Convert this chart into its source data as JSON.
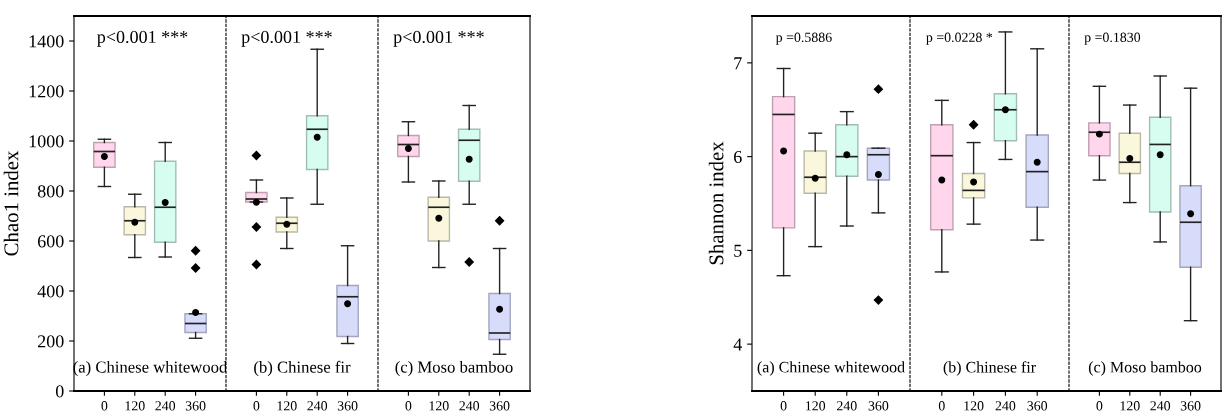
{
  "chart_data": [
    {
      "type": "box",
      "categories": [
        "0",
        "120",
        "240",
        "360"
      ],
      "ylabel": "Chao1 index",
      "ylim": [
        0,
        1500
      ],
      "yticks": [
        0,
        200,
        400,
        600,
        800,
        1000,
        1200,
        1400
      ],
      "colors": [
        "#ffd6ec",
        "#faf7dc",
        "#d6fdf0",
        "#d8dcfb"
      ],
      "annotations": [
        "p<0.001 ***",
        "(a) Chinese whitewood"
      ],
      "boxes": [
        {
          "low": 818,
          "q1": 895,
          "median": 958,
          "q3": 994,
          "high": 1007,
          "mean": 938
        },
        {
          "low": 534,
          "q1": 625,
          "median": 681,
          "q3": 737,
          "high": 787,
          "mean": 675
        },
        {
          "low": 536,
          "q1": 595,
          "median": 735,
          "q3": 919,
          "high": 994,
          "mean": 754
        },
        {
          "low": 211,
          "q1": 234,
          "median": 270,
          "q3": 309,
          "high": 309,
          "mean": 314,
          "outliers": [
            561,
            492
          ]
        }
      ]
    },
    {
      "type": "box",
      "categories": [
        "0",
        "120",
        "240",
        "360"
      ],
      "ylim": [
        0,
        1500
      ],
      "yticks": [
        0,
        200,
        400,
        600,
        800,
        1000,
        1200,
        1400
      ],
      "tick_labels": "x",
      "colors": [
        "#ffd6ec",
        "#faf7dc",
        "#d6fdf0",
        "#d8dcfb"
      ],
      "annotations": [
        "p<0.001 ***",
        "(b) Chinese fir"
      ],
      "boxes": [
        {
          "low": 756,
          "q1": 756,
          "median": 768,
          "q3": 794,
          "high": 844,
          "mean": 755,
          "outliers": [
            942,
            656,
            506
          ]
        },
        {
          "low": 570,
          "q1": 636,
          "median": 671,
          "q3": 695,
          "high": 772,
          "mean": 667
        },
        {
          "low": 747,
          "q1": 886,
          "median": 1047,
          "q3": 1101,
          "high": 1367,
          "mean": 1015
        },
        {
          "low": 190,
          "q1": 218,
          "median": 377,
          "q3": 422,
          "high": 581,
          "mean": 349
        }
      ]
    },
    {
      "type": "box",
      "categories": [
        "0",
        "120",
        "240",
        "360"
      ],
      "ylim": [
        0,
        1500
      ],
      "yticks": [
        0,
        200,
        400,
        600,
        800,
        1000,
        1200,
        1400
      ],
      "tick_labels": "x",
      "colors": [
        "#ffd6ec",
        "#faf7dc",
        "#d6fdf0",
        "#d8dcfb"
      ],
      "annotations": [
        "p<0.001 ***",
        "(c) Moso bamboo"
      ],
      "boxes": [
        {
          "low": 836,
          "q1": 938,
          "median": 986,
          "q3": 1022,
          "high": 1077,
          "mean": 970
        },
        {
          "low": 494,
          "q1": 600,
          "median": 735,
          "q3": 775,
          "high": 840,
          "mean": 691
        },
        {
          "low": 747,
          "q1": 839,
          "median": 1003,
          "q3": 1047,
          "high": 1142,
          "mean": 927,
          "outliers": [
            516
          ]
        },
        {
          "low": 147,
          "q1": 206,
          "median": 232,
          "q3": 390,
          "high": 570,
          "mean": 327,
          "outliers": [
            681
          ]
        }
      ]
    },
    {
      "type": "box",
      "categories": [
        "0",
        "120",
        "240",
        "360"
      ],
      "ylabel": "Shannon index",
      "ylim": [
        3.5,
        7.5
      ],
      "yticks": [
        4,
        5,
        6,
        7
      ],
      "colors": [
        "#ffd6ec",
        "#faf7dc",
        "#d6fdf0",
        "#d8dcfb"
      ],
      "annotations": [
        "p =0.5886",
        "(a) Chinese whitewood"
      ],
      "boxes": [
        {
          "low": 4.73,
          "q1": 5.24,
          "median": 6.45,
          "q3": 6.64,
          "high": 6.94,
          "mean": 6.06
        },
        {
          "low": 5.04,
          "q1": 5.61,
          "median": 5.78,
          "q3": 6.06,
          "high": 6.25,
          "mean": 5.77
        },
        {
          "low": 5.26,
          "q1": 5.79,
          "median": 6.0,
          "q3": 6.34,
          "high": 6.48,
          "mean": 6.02
        },
        {
          "low": 5.4,
          "q1": 5.75,
          "median": 6.02,
          "q3": 6.09,
          "high": 6.09,
          "mean": 5.81,
          "outliers": [
            6.72,
            4.47
          ]
        }
      ]
    },
    {
      "type": "box",
      "categories": [
        "0",
        "120",
        "240",
        "360"
      ],
      "ylim": [
        3.5,
        7.5
      ],
      "yticks": [
        4,
        5,
        6,
        7
      ],
      "tick_labels": "x",
      "colors": [
        "#ffd6ec",
        "#faf7dc",
        "#d6fdf0",
        "#d8dcfb"
      ],
      "annotations": [
        "p =0.0228 *",
        "(b) Chinese fir"
      ],
      "boxes": [
        {
          "low": 4.77,
          "q1": 5.22,
          "median": 6.01,
          "q3": 6.34,
          "high": 6.6,
          "mean": 5.75
        },
        {
          "low": 5.28,
          "q1": 5.56,
          "median": 5.64,
          "q3": 5.82,
          "high": 6.15,
          "mean": 5.73,
          "outliers": [
            6.34
          ]
        },
        {
          "low": 5.97,
          "q1": 6.17,
          "median": 6.5,
          "q3": 6.67,
          "high": 7.33,
          "mean": 6.5
        },
        {
          "low": 5.11,
          "q1": 5.46,
          "median": 5.84,
          "q3": 6.23,
          "high": 7.15,
          "mean": 5.94
        }
      ]
    },
    {
      "type": "box",
      "categories": [
        "0",
        "120",
        "240",
        "360"
      ],
      "ylim": [
        3.5,
        7.5
      ],
      "yticks": [
        4,
        5,
        6,
        7
      ],
      "tick_labels": "x",
      "colors": [
        "#ffd6ec",
        "#faf7dc",
        "#d6fdf0",
        "#d8dcfb"
      ],
      "annotations": [
        "p =0.1830",
        "(c) Moso bamboo"
      ],
      "boxes": [
        {
          "low": 5.75,
          "q1": 6.01,
          "median": 6.26,
          "q3": 6.36,
          "high": 6.75,
          "mean": 6.24
        },
        {
          "low": 5.51,
          "q1": 5.82,
          "median": 5.94,
          "q3": 6.25,
          "high": 6.55,
          "mean": 5.98
        },
        {
          "low": 5.09,
          "q1": 5.41,
          "median": 6.13,
          "q3": 6.42,
          "high": 6.86,
          "mean": 6.02
        },
        {
          "low": 4.25,
          "q1": 4.82,
          "median": 5.3,
          "q3": 5.69,
          "high": 6.73,
          "mean": 5.39
        }
      ]
    }
  ]
}
